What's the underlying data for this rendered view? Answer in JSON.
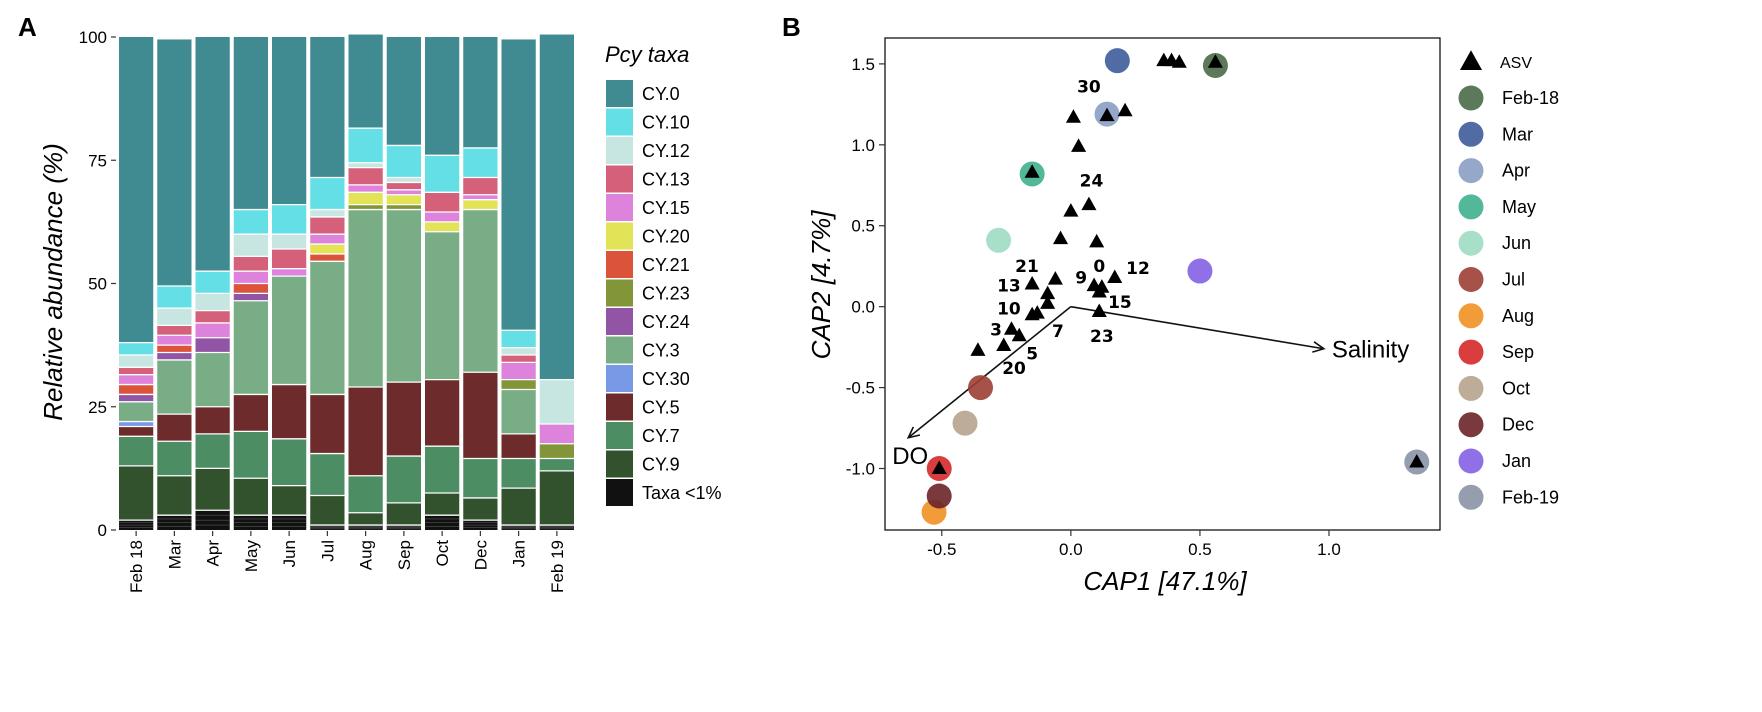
{
  "chart_data": [
    {
      "panel": "A",
      "type": "bar",
      "stacked": true,
      "ylabel": "Relative abundance (%)",
      "xlabel": "",
      "ylim": [
        0,
        100
      ],
      "yticks": [
        0,
        25,
        50,
        75,
        100
      ],
      "legend_title": "Pcy taxa",
      "legend_position": "right",
      "categories": [
        "Feb 18",
        "Mar",
        "Apr",
        "May",
        "Jun",
        "Jul",
        "Aug",
        "Sep",
        "Oct",
        "Dec",
        "Jan",
        "Feb 19"
      ],
      "series": [
        {
          "name": "Taxa <1%",
          "color": "#111111",
          "values": [
            2,
            3,
            4,
            3,
            3,
            1,
            1,
            1,
            3,
            2,
            1,
            1
          ]
        },
        {
          "name": "CY.9",
          "color": "#32522d",
          "values": [
            11,
            8,
            8.5,
            7.5,
            6,
            6,
            2.5,
            4.5,
            4.5,
            4.5,
            7.5,
            11
          ]
        },
        {
          "name": "CY.7",
          "color": "#4d8d63",
          "values": [
            6,
            7,
            7,
            9.5,
            9.5,
            8.5,
            7.5,
            9.5,
            9.5,
            8,
            6,
            2.5
          ]
        },
        {
          "name": "CY.5",
          "color": "#6e2b2c",
          "values": [
            2,
            5.5,
            5.5,
            7.5,
            11,
            12,
            18,
            15,
            13.5,
            17.5,
            5,
            0
          ]
        },
        {
          "name": "CY.30",
          "color": "#7799e6",
          "values": [
            1,
            0,
            0,
            0,
            0,
            0,
            0,
            0,
            0,
            0,
            0,
            0
          ]
        },
        {
          "name": "CY.3",
          "color": "#78ad86",
          "values": [
            4,
            11,
            11,
            19,
            22,
            27,
            36,
            35,
            30,
            33,
            9,
            0
          ]
        },
        {
          "name": "CY.24",
          "color": "#9254a4",
          "values": [
            1.5,
            1.5,
            3,
            1.5,
            0,
            0,
            0,
            0,
            0,
            0,
            0,
            0
          ]
        },
        {
          "name": "CY.23",
          "color": "#829639",
          "values": [
            0,
            0,
            0,
            0,
            0,
            0,
            1,
            1,
            0,
            0,
            2,
            3
          ]
        },
        {
          "name": "CY.21",
          "color": "#dc533b",
          "values": [
            2,
            1.5,
            0,
            2,
            0,
            1.5,
            0,
            0,
            0,
            0,
            0,
            0
          ]
        },
        {
          "name": "CY.20",
          "color": "#e3e358",
          "values": [
            0,
            0,
            0,
            0,
            0,
            2,
            2.5,
            2,
            2,
            2,
            0,
            0
          ]
        },
        {
          "name": "CY.15",
          "color": "#dd83dc",
          "values": [
            2,
            2,
            3,
            2.5,
            1.5,
            2,
            1.5,
            1,
            2,
            1,
            3.5,
            4
          ]
        },
        {
          "name": "CY.13",
          "color": "#d46179",
          "values": [
            1.5,
            2,
            2.5,
            3,
            4,
            3.5,
            3.5,
            1.5,
            4,
            3.5,
            1.5,
            0
          ]
        },
        {
          "name": "CY.12",
          "color": "#c7e5e1",
          "values": [
            2.5,
            3.5,
            3.5,
            4.5,
            3,
            1.5,
            1,
            1,
            0,
            0,
            1.5,
            9
          ]
        },
        {
          "name": "CY.10",
          "color": "#64dfe6",
          "values": [
            2.5,
            4.5,
            4.5,
            5,
            6,
            6.5,
            7,
            6.5,
            7.5,
            6,
            3.5,
            0
          ]
        },
        {
          "name": "CY.0",
          "color": "#3f8b91",
          "values": [
            62,
            50,
            47.5,
            35,
            34,
            28.5,
            19,
            22,
            24,
            22.5,
            59,
            70
          ]
        }
      ],
      "legend_order": [
        "CY.0",
        "CY.10",
        "CY.12",
        "CY.13",
        "CY.15",
        "CY.20",
        "CY.21",
        "CY.23",
        "CY.24",
        "CY.3",
        "CY.30",
        "CY.5",
        "CY.7",
        "CY.9",
        "Taxa <1%"
      ]
    },
    {
      "panel": "B",
      "type": "scatter",
      "xlabel": "CAP1   [47.1%]",
      "ylabel": "CAP2   [4.7%]",
      "xlim": [
        -0.72,
        1.43
      ],
      "ylim": [
        -1.38,
        1.66
      ],
      "xticks": [
        -0.5,
        0.0,
        0.5,
        1.0
      ],
      "xtick_labels": [
        "-0.5",
        "0.0",
        "0.5",
        "1.0"
      ],
      "yticks": [
        -1.0,
        -0.5,
        0.0,
        0.5,
        1.0,
        1.5
      ],
      "ytick_labels": [
        "-1.0",
        "-0.5",
        "0.0",
        "0.5",
        "1.0",
        "1.5"
      ],
      "legend_position": "right",
      "sample_series": [
        {
          "name": "Feb-18",
          "color": "#4a6b47",
          "x": 0.56,
          "y": 1.49
        },
        {
          "name": "Mar",
          "color": "#3e5b9b",
          "x": 0.18,
          "y": 1.52
        },
        {
          "name": "Apr",
          "color": "#8b9ec4",
          "x": 0.14,
          "y": 1.19
        },
        {
          "name": "May",
          "color": "#3fb08e",
          "x": -0.15,
          "y": 0.82
        },
        {
          "name": "Jun",
          "color": "#9fdcc3",
          "x": -0.28,
          "y": 0.41
        },
        {
          "name": "Jul",
          "color": "#9c3f35",
          "x": -0.35,
          "y": -0.5
        },
        {
          "name": "Aug",
          "color": "#f09123",
          "x": -0.53,
          "y": -1.27
        },
        {
          "name": "Sep",
          "color": "#d62828",
          "x": -0.51,
          "y": -1.0
        },
        {
          "name": "Oct",
          "color": "#b6a38c",
          "x": -0.41,
          "y": -0.72
        },
        {
          "name": "Dec",
          "color": "#6a2428",
          "x": -0.51,
          "y": -1.17
        },
        {
          "name": "Jan",
          "color": "#8361e3",
          "x": 0.5,
          "y": 0.22
        },
        {
          "name": "Feb-19",
          "color": "#8893a6",
          "x": 1.34,
          "y": -0.96
        }
      ],
      "asv": {
        "name": "ASV",
        "points": [
          {
            "x": 0.36,
            "y": 1.52
          },
          {
            "x": 0.39,
            "y": 1.52
          },
          {
            "x": 0.42,
            "y": 1.51
          },
          {
            "x": 0.56,
            "y": 1.51
          },
          {
            "x": 0.14,
            "y": 1.18
          },
          {
            "x": 0.21,
            "y": 1.21
          },
          {
            "x": 0.01,
            "y": 1.17
          },
          {
            "x": 0.03,
            "y": 0.99
          },
          {
            "x": -0.15,
            "y": 0.83
          },
          {
            "x": 0.07,
            "y": 0.63
          },
          {
            "x": 0.0,
            "y": 0.59
          },
          {
            "x": -0.04,
            "y": 0.42
          },
          {
            "x": 0.1,
            "y": 0.4
          },
          {
            "x": -0.06,
            "y": 0.17
          },
          {
            "x": 0.17,
            "y": 0.18
          },
          {
            "x": 0.09,
            "y": 0.13
          },
          {
            "x": 0.12,
            "y": 0.12
          },
          {
            "x": 0.11,
            "y": 0.09
          },
          {
            "x": -0.15,
            "y": 0.14
          },
          {
            "x": -0.09,
            "y": 0.08
          },
          {
            "x": -0.09,
            "y": 0.02
          },
          {
            "x": -0.13,
            "y": -0.04
          },
          {
            "x": -0.15,
            "y": -0.05
          },
          {
            "x": 0.11,
            "y": -0.03
          },
          {
            "x": -0.23,
            "y": -0.14
          },
          {
            "x": -0.2,
            "y": -0.18
          },
          {
            "x": -0.26,
            "y": -0.24
          },
          {
            "x": -0.36,
            "y": -0.27
          },
          {
            "x": -0.51,
            "y": -1.0
          },
          {
            "x": 1.34,
            "y": -0.96
          }
        ],
        "labels": [
          {
            "text": "30",
            "x": 0.07,
            "y": 1.36
          },
          {
            "text": "24",
            "x": 0.08,
            "y": 0.78
          },
          {
            "text": "21",
            "x": -0.17,
            "y": 0.25
          },
          {
            "text": "13",
            "x": -0.24,
            "y": 0.13
          },
          {
            "text": "10",
            "x": -0.24,
            "y": -0.01
          },
          {
            "text": "3",
            "x": -0.29,
            "y": -0.14
          },
          {
            "text": "7",
            "x": -0.05,
            "y": -0.15
          },
          {
            "text": "5",
            "x": -0.15,
            "y": -0.29
          },
          {
            "text": "20",
            "x": -0.22,
            "y": -0.38
          },
          {
            "text": "9",
            "x": 0.04,
            "y": 0.18
          },
          {
            "text": "0",
            "x": 0.11,
            "y": 0.25
          },
          {
            "text": "12",
            "x": 0.26,
            "y": 0.24
          },
          {
            "text": "15",
            "x": 0.19,
            "y": 0.03
          },
          {
            "text": "23",
            "x": 0.12,
            "y": -0.18
          }
        ]
      },
      "vectors": [
        {
          "name": "Salinity",
          "x": 0.98,
          "y": -0.26
        },
        {
          "name": "DO",
          "x": -0.63,
          "y": -0.81
        }
      ]
    }
  ]
}
